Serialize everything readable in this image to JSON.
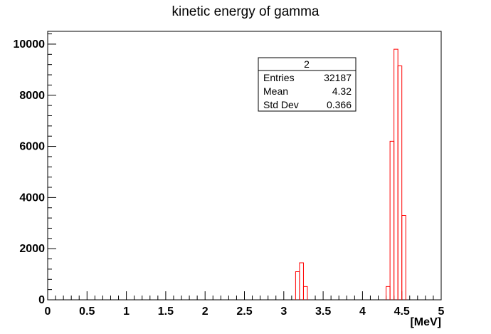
{
  "chart_data": {
    "type": "histogram",
    "title": "kinetic energy of gamma",
    "xlabel": "[MeV]",
    "ylabel": "",
    "xlim": [
      0,
      5
    ],
    "ylim": [
      0,
      10500
    ],
    "x_ticks": [
      "0",
      "0.5",
      "1",
      "1.5",
      "2",
      "2.5",
      "3",
      "3.5",
      "4",
      "4.5",
      "5"
    ],
    "y_ticks": [
      "0",
      "2000",
      "4000",
      "6000",
      "8000",
      "10000"
    ],
    "grid": false,
    "bin_width": 0.05,
    "series": [
      {
        "color": "#ff0000",
        "bins": [
          {
            "x0": 3.15,
            "x1": 3.2,
            "count": 1100
          },
          {
            "x0": 3.2,
            "x1": 3.25,
            "count": 1450
          },
          {
            "x0": 3.25,
            "x1": 3.3,
            "count": 520
          },
          {
            "x0": 4.3,
            "x1": 4.35,
            "count": 520
          },
          {
            "x0": 4.35,
            "x1": 4.4,
            "count": 6200
          },
          {
            "x0": 4.4,
            "x1": 4.45,
            "count": 9800
          },
          {
            "x0": 4.45,
            "x1": 4.5,
            "count": 9150
          },
          {
            "x0": 4.5,
            "x1": 4.55,
            "count": 3300
          }
        ]
      }
    ],
    "stats_box": {
      "name": "2",
      "rows": [
        {
          "label": "Entries",
          "value": "32187"
        },
        {
          "label": "Mean",
          "value": "4.32"
        },
        {
          "label": "Std Dev",
          "value": "0.366"
        }
      ]
    }
  }
}
